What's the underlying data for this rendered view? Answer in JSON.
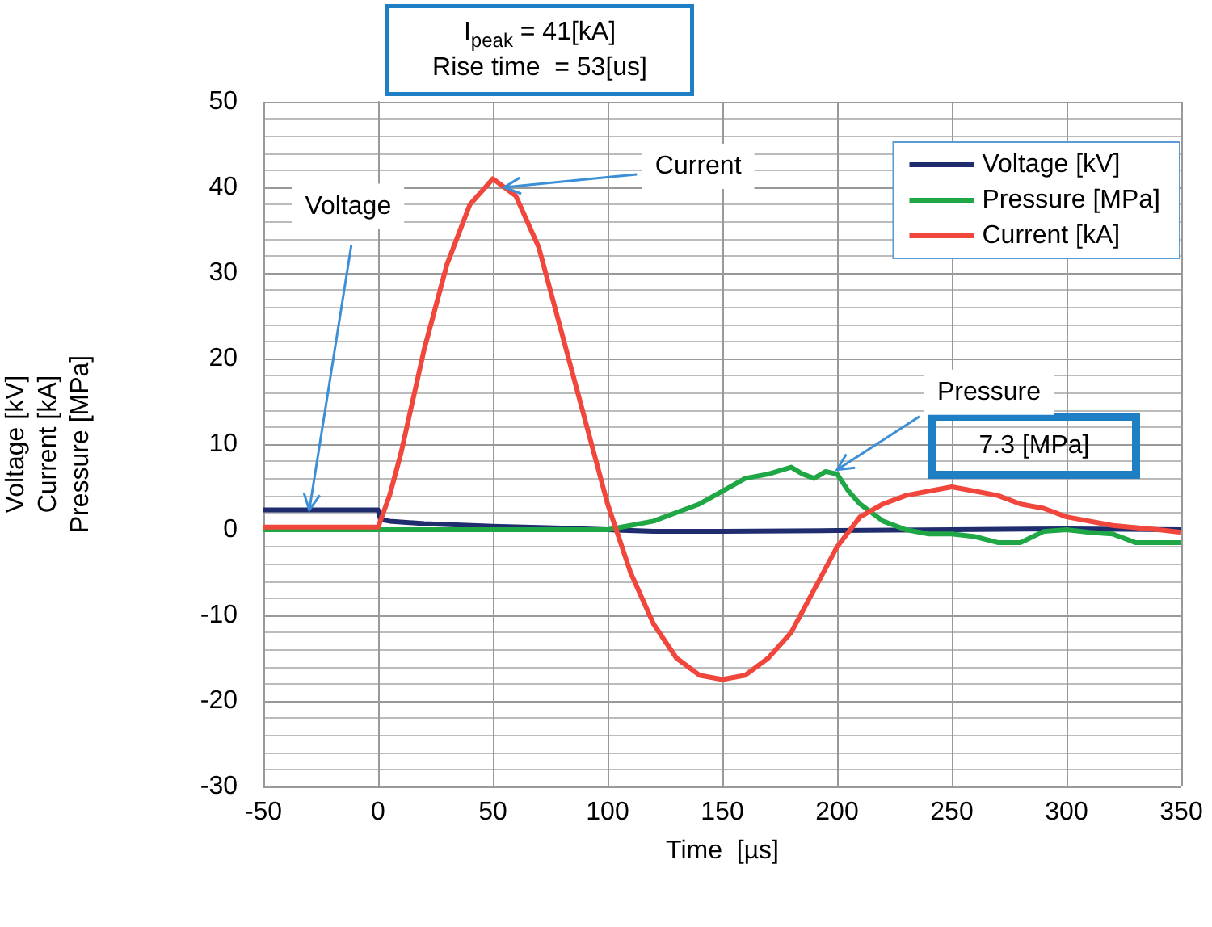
{
  "chart_data": {
    "type": "line",
    "xlabel": "Time  [µs]",
    "ylabel": "Voltage [kV]\nCurrent [kA]\nPressure [MPa]",
    "xlim": [
      -50,
      350
    ],
    "xticks": [
      -50,
      0,
      50,
      100,
      150,
      200,
      250,
      300,
      350
    ],
    "ylim": [
      -30,
      50
    ],
    "yticks": [
      -30,
      -20,
      -10,
      0,
      10,
      20,
      30,
      40,
      50
    ],
    "grid": true,
    "legend": "top right",
    "marker": "none",
    "line_style": "solid",
    "series": [
      {
        "name": "Voltage [kV]",
        "color": "#1f2d6e",
        "x": [
          -50,
          -25,
          0,
          1,
          5,
          20,
          50,
          80,
          100,
          120,
          150,
          200,
          250,
          300,
          350
        ],
        "values": [
          2.3,
          2.3,
          2.3,
          1.2,
          1.0,
          0.7,
          0.4,
          0.2,
          0.0,
          -0.2,
          -0.2,
          -0.1,
          0.0,
          0.1,
          0.0
        ]
      },
      {
        "name": "Pressure [MPa]",
        "color": "#1fa645",
        "x": [
          -50,
          0,
          50,
          100,
          110,
          120,
          130,
          140,
          150,
          160,
          170,
          180,
          185,
          190,
          195,
          200,
          205,
          210,
          220,
          230,
          240,
          250,
          260,
          270,
          280,
          290,
          300,
          310,
          320,
          330,
          340,
          350
        ],
        "values": [
          0.0,
          0.0,
          0.0,
          0.0,
          0.5,
          1.0,
          2.0,
          3.0,
          4.5,
          6.0,
          6.5,
          7.3,
          6.5,
          6.0,
          6.8,
          6.5,
          4.5,
          3.0,
          1.0,
          0.0,
          -0.5,
          -0.5,
          -0.8,
          -1.5,
          -1.5,
          -0.2,
          0.0,
          -0.3,
          -0.5,
          -1.5,
          -1.5,
          -1.5
        ]
      },
      {
        "name": "Current [kA]",
        "color": "#f0463c",
        "x": [
          -50,
          -25,
          0,
          5,
          10,
          20,
          30,
          40,
          50,
          60,
          70,
          80,
          90,
          100,
          110,
          120,
          130,
          140,
          150,
          160,
          170,
          180,
          190,
          200,
          210,
          220,
          230,
          240,
          250,
          260,
          270,
          280,
          290,
          300,
          320,
          340,
          350
        ],
        "values": [
          0.3,
          0.3,
          0.3,
          4,
          9,
          21,
          31,
          38,
          41,
          39,
          33,
          23,
          13,
          3,
          -5,
          -11,
          -15,
          -17,
          -17.5,
          -17,
          -15,
          -12,
          -7,
          -2,
          1.5,
          3,
          4,
          4.5,
          5,
          4.5,
          4,
          3,
          2.5,
          1.5,
          0.5,
          0,
          -0.3
        ]
      }
    ],
    "annotations": [
      "I$_{peak}$ = 41[kA]",
      "Rise time  = 53[us]",
      {
        "text": "Voltage",
        "x": -30,
        "y": 2.3
      },
      {
        "text": "Current",
        "x": 55,
        "y": 40
      },
      {
        "text": "Pressure",
        "x": 200,
        "y": 7
      },
      "7.3 [MPa]"
    ]
  }
}
